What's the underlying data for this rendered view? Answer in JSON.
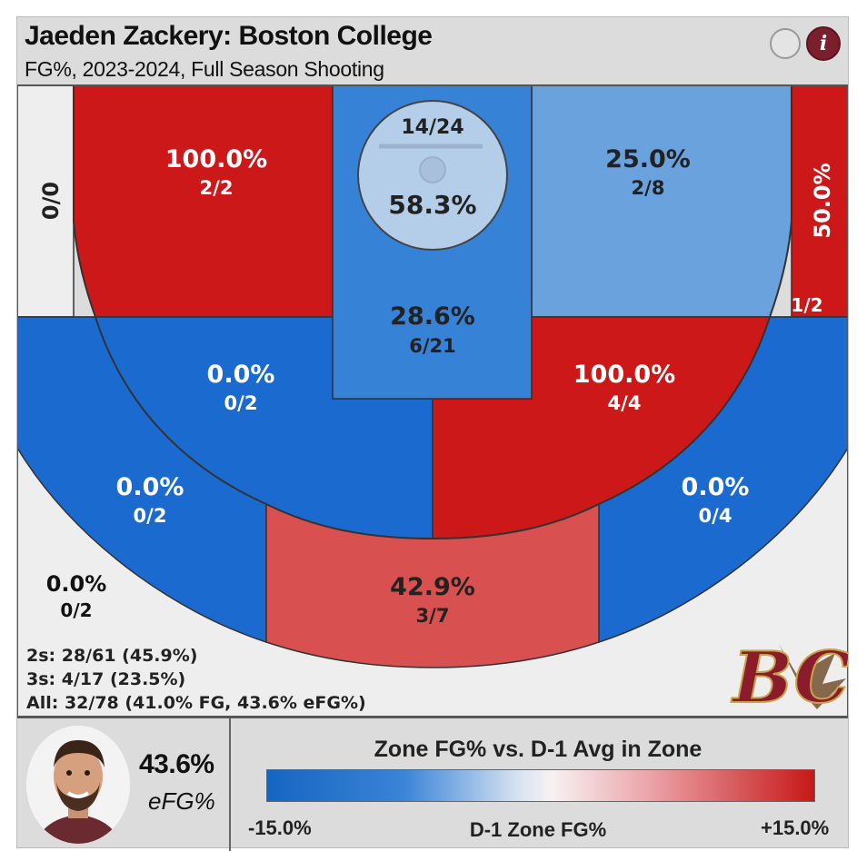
{
  "header": {
    "title": "Jaeden Zackery: Boston College",
    "subtitle": "FG%, 2023-2024, Full Season Shooting",
    "info_icon": "i"
  },
  "chart_data": {
    "type": "shot-chart",
    "title": "Jaeden Zackery: Boston College",
    "subtitle": "FG%, 2023-2024, Full Season Shooting",
    "zones": [
      {
        "id": "rim",
        "pct": "58.3%",
        "made_att": "14/24",
        "color": "#b4cde8",
        "text_color": "#222"
      },
      {
        "id": "paint",
        "pct": "28.6%",
        "made_att": "6/21",
        "color": "#3682d6",
        "text_color": "#222"
      },
      {
        "id": "left-baseline-mid",
        "pct": "100.0%",
        "made_att": "2/2",
        "color": "#cc1818",
        "text_color": "#ffffff"
      },
      {
        "id": "right-baseline-mid",
        "pct": "25.0%",
        "made_att": "2/8",
        "color": "#6aa2de",
        "text_color": "#222"
      },
      {
        "id": "left-elbow-mid",
        "pct": "0.0%",
        "made_att": "0/2",
        "color": "#1a6ad0",
        "text_color": "#ffffff"
      },
      {
        "id": "right-elbow-mid",
        "pct": "100.0%",
        "made_att": "4/4",
        "color": "#cc1818",
        "text_color": "#ffffff"
      },
      {
        "id": "left-corner-3",
        "pct": "",
        "made_att": "0/0",
        "color": "#eeeeee",
        "text_color": "#222"
      },
      {
        "id": "right-corner-3",
        "pct": "50.0%",
        "made_att": "1/2",
        "color": "#cc1818",
        "text_color": "#ffffff"
      },
      {
        "id": "left-wing-3",
        "pct": "0.0%",
        "made_att": "0/2",
        "color": "#1a6ad0",
        "text_color": "#ffffff"
      },
      {
        "id": "top-3",
        "pct": "42.9%",
        "made_att": "3/7",
        "color": "#d85050",
        "text_color": "#222"
      },
      {
        "id": "right-wing-3",
        "pct": "0.0%",
        "made_att": "0/4",
        "color": "#1a6ad0",
        "text_color": "#ffffff"
      },
      {
        "id": "deep",
        "pct": "0.0%",
        "made_att": "0/2",
        "color": "#eeeeee",
        "text_color": "#222"
      }
    ],
    "legend": {
      "title": "Zone FG% vs. D-1 Avg in Zone",
      "min_label": "-15.0%",
      "mid_label": "D-1 Zone FG%",
      "max_label": "+15.0%"
    }
  },
  "totals": {
    "twos": "2s: 28/61 (45.9%)",
    "threes": "3s: 4/17 (23.5%)",
    "all": "All: 32/78 (41.0% FG, 43.6% eFG%)"
  },
  "player": {
    "efg_value": "43.6%",
    "efg_label": "eFG%"
  },
  "logo": {
    "text": "BC",
    "color": "#8a1c2c"
  }
}
